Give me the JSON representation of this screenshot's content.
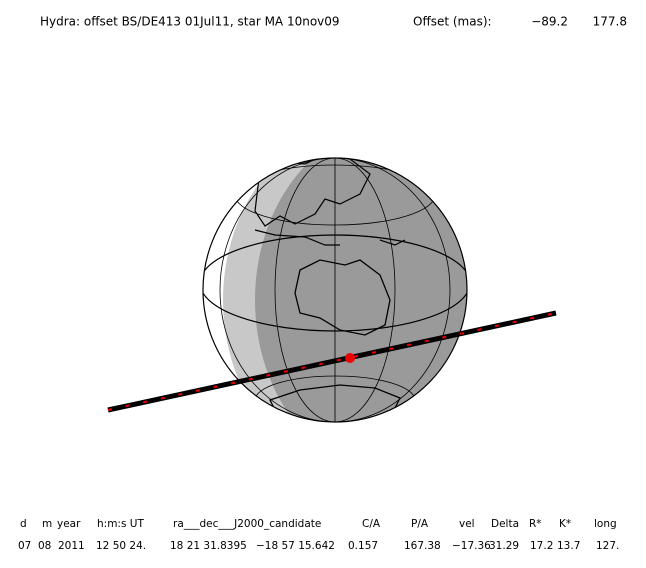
{
  "header": {
    "title": "Hydra: offset BS/DE413 01Jul11, star MA 10nov09",
    "offset_label": "Offset (mas):",
    "offset_x": "−89.2",
    "offset_y": "177.8"
  },
  "table": {
    "columns": [
      "d",
      "m",
      "year",
      "h:m:s UT",
      "ra___dec___J2000_candidate",
      "C/A",
      "P/A",
      "vel",
      "Delta",
      "R*",
      "K*",
      "long"
    ],
    "row": [
      "07",
      "08",
      "2011",
      "12 50 24.",
      "18 21 31.8395",
      "−18 57 15.642",
      "0.157",
      "167.38",
      "−17.36",
      "31.29",
      "17.2",
      "13.7",
      "127."
    ]
  }
}
